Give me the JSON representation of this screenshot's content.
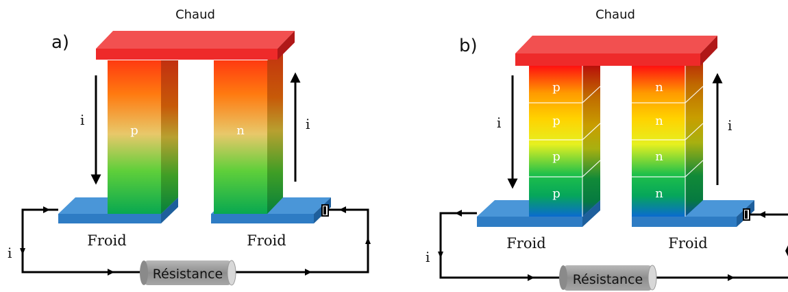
{
  "panel_a": {
    "label": "a)",
    "hot_label": "Chaud",
    "cold_left_label": "Froid",
    "cold_right_label": "Froid",
    "left_leg_label": "p",
    "right_leg_label": "n",
    "current_left": "i",
    "current_right": "i",
    "current_circuit": "i",
    "resistor_label": "Résistance"
  },
  "panel_b": {
    "label": "b)",
    "hot_label": "Chaud",
    "cold_left_label": "Froid",
    "cold_right_label": "Froid",
    "left_segments": [
      "p",
      "p",
      "p",
      "p"
    ],
    "right_segments": [
      "n",
      "n",
      "n",
      "n"
    ],
    "current_left": "i",
    "current_right": "i",
    "current_circuit": "i",
    "resistor_label": "Résistance"
  },
  "colors": {
    "hot_plate": "#ee2a2a",
    "cold_plate": "#2e7cc4",
    "wire": "#000000",
    "resistor": "#9a9a9a"
  }
}
